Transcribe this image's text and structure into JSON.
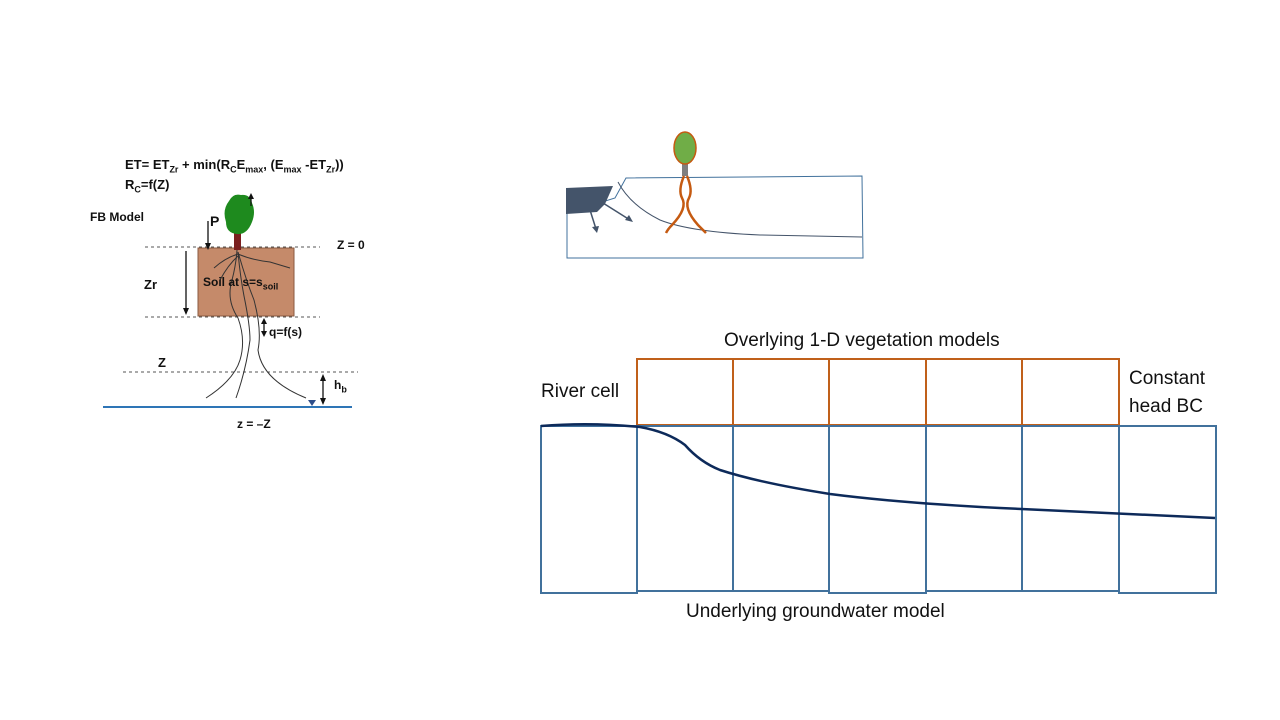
{
  "fb_model": {
    "eq1": {
      "a": "ET= ET",
      "a_sub": "Zr",
      "b": " + min(R",
      "b_sub": "C",
      "c": "E",
      "c_sub": "max",
      "d": ", (E",
      "d_sub": "max",
      "e": " -ET",
      "e_sub": "Zr",
      "f": "))"
    },
    "eq2": {
      "a": "R",
      "a_sub": "C",
      "b": "=f(Z)"
    },
    "title": "FB Model",
    "p_label": "P",
    "z0_label": "Z = 0",
    "zr_label": "Zr",
    "soil_label": {
      "a": "Soil at s=s",
      "sub": "soil"
    },
    "q_label": "q=f(s)",
    "z_label": "Z",
    "hb_label": {
      "a": "h",
      "sub": "b"
    },
    "zneg_label": "z = –Z"
  },
  "grid_model": {
    "top_label": "Overlying 1-D vegetation models",
    "river_label": "River cell",
    "bc_label_line1": "Constant",
    "bc_label_line2": "head BC",
    "bottom_label": "Underlying groundwater model"
  },
  "colors": {
    "vegetation_cells": "#c0601a",
    "groundwater_cells": "#41719c",
    "water_table": "#0d2a5a",
    "soil": "#c58a6a",
    "tree_green": "#1e8a1e",
    "canopy": "#70ad47",
    "roots": "#c55a11"
  }
}
